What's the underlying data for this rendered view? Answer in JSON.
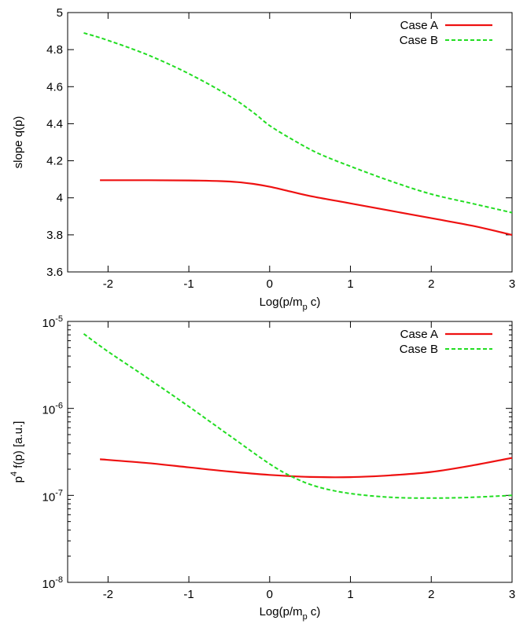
{
  "chart_data": [
    {
      "type": "line",
      "ylabel": "slope q(p)",
      "xlabel": {
        "base": "Log(p/m",
        "sub": "p",
        "rest": " c)"
      },
      "xlim": [
        -2.5,
        3
      ],
      "ylim": [
        3.6,
        5.0
      ],
      "xscale": "linear",
      "yscale": "linear",
      "grid": false,
      "legend_position": "top-right",
      "xticks": [
        -2,
        -1,
        0,
        1,
        2,
        3
      ],
      "xtick_labels": [
        "-2",
        "-1",
        "0",
        "1",
        "2",
        "3"
      ],
      "yticks": [
        3.6,
        3.8,
        4.0,
        4.2,
        4.4,
        4.6,
        4.8,
        5.0
      ],
      "ytick_labels": [
        "3.6",
        "3.8",
        "4",
        "4.2",
        "4.4",
        "4.6",
        "4.8",
        "5"
      ],
      "series": [
        {
          "name": "Case A",
          "color": "#ee1111",
          "dash": "solid",
          "x": [
            -2.1,
            -1.5,
            -1.0,
            -0.6,
            -0.4,
            -0.2,
            0.0,
            0.2,
            0.5,
            1.0,
            1.5,
            2.0,
            2.5,
            3.0
          ],
          "y": [
            4.095,
            4.095,
            4.094,
            4.09,
            4.085,
            4.075,
            4.06,
            4.04,
            4.01,
            3.97,
            3.93,
            3.89,
            3.85,
            3.8
          ]
        },
        {
          "name": "Case B",
          "color": "#22dd22",
          "dash": "dashed",
          "x": [
            -2.3,
            -2.0,
            -1.5,
            -1.0,
            -0.5,
            -0.2,
            0.0,
            0.3,
            0.6,
            1.0,
            1.5,
            2.0,
            2.5,
            3.0
          ],
          "y": [
            4.89,
            4.85,
            4.77,
            4.67,
            4.55,
            4.46,
            4.39,
            4.31,
            4.24,
            4.17,
            4.09,
            4.02,
            3.97,
            3.92
          ]
        }
      ]
    },
    {
      "type": "line",
      "ylabel": {
        "base": "p",
        "sup": "4",
        "rest": " f(p)  [a.u.]"
      },
      "xlabel": {
        "base": "Log(p/m",
        "sub": "p",
        "rest": " c)"
      },
      "xlim": [
        -2.5,
        3
      ],
      "ylim": [
        1e-08,
        1e-05
      ],
      "xscale": "linear",
      "yscale": "log",
      "grid": false,
      "legend_position": "top-right",
      "xticks": [
        -2,
        -1,
        0,
        1,
        2,
        3
      ],
      "xtick_labels": [
        "-2",
        "-1",
        "0",
        "1",
        "2",
        "3"
      ],
      "yticks": [
        1e-08,
        1e-07,
        1e-06,
        1e-05
      ],
      "ytick_labels": [
        {
          "base": "10",
          "sup": "-8"
        },
        {
          "base": "10",
          "sup": "-7"
        },
        {
          "base": "10",
          "sup": "-6"
        },
        {
          "base": "10",
          "sup": "-5"
        }
      ],
      "series": [
        {
          "name": "Case A",
          "color": "#ee1111",
          "dash": "solid",
          "x": [
            -2.1,
            -1.5,
            -1.0,
            -0.5,
            0.0,
            0.5,
            1.0,
            1.5,
            2.0,
            2.5,
            3.0
          ],
          "y": [
            2.6e-07,
            2.35e-07,
            2.1e-07,
            1.88e-07,
            1.72e-07,
            1.63e-07,
            1.62e-07,
            1.7e-07,
            1.86e-07,
            2.2e-07,
            2.7e-07
          ]
        },
        {
          "name": "Case B",
          "color": "#22dd22",
          "dash": "dashed",
          "x": [
            -2.3,
            -2.0,
            -1.5,
            -1.0,
            -0.5,
            0.0,
            0.3,
            0.6,
            1.0,
            1.5,
            2.0,
            2.5,
            3.0
          ],
          "y": [
            7.2e-06,
            4.5e-06,
            2.2e-06,
            1.05e-06,
            4.9e-07,
            2.3e-07,
            1.6e-07,
            1.25e-07,
            1.05e-07,
            9.5e-08,
            9.3e-08,
            9.5e-08,
            1e-07
          ]
        }
      ]
    }
  ]
}
